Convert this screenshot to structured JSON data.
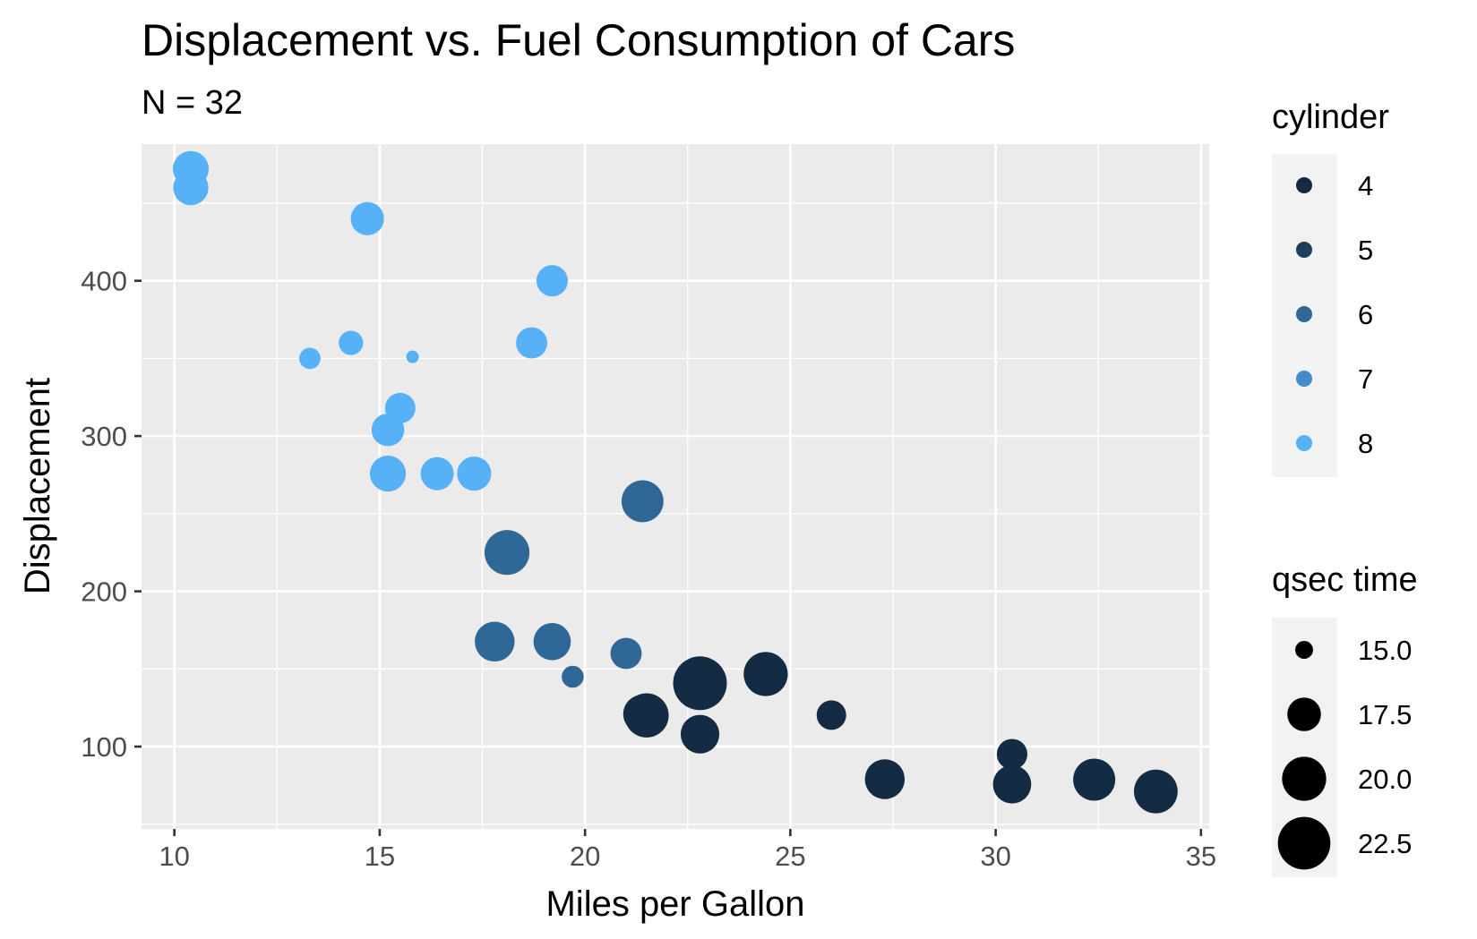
{
  "chart_data": {
    "type": "scatter",
    "title": "Displacement vs. Fuel Consumption of Cars",
    "subtitle": "N = 32",
    "xlabel": "Miles per Gallon",
    "ylabel": "Displacement",
    "xlim": [
      9.2,
      35.2
    ],
    "ylim": [
      47,
      488
    ],
    "xticks": [
      10,
      15,
      20,
      25,
      30,
      35
    ],
    "yticks": [
      100,
      200,
      300,
      400
    ],
    "grid": true,
    "panel_background": "#ebebeb",
    "legend_position": "right",
    "color_legend": {
      "title": "cylinder",
      "levels": [
        {
          "label": "4",
          "color": "#132b43"
        },
        {
          "label": "5",
          "color": "#1d3f5e"
        },
        {
          "label": "6",
          "color": "#2f6897"
        },
        {
          "label": "7",
          "color": "#428dcc"
        },
        {
          "label": "8",
          "color": "#56b1f7"
        }
      ]
    },
    "size_legend": {
      "title": "qsec time",
      "levels": [
        {
          "label": "15.0",
          "value": 15.0
        },
        {
          "label": "17.5",
          "value": 17.5
        },
        {
          "label": "20.0",
          "value": 20.0
        },
        {
          "label": "22.5",
          "value": 22.5
        }
      ]
    },
    "points": [
      {
        "mpg": 21.0,
        "disp": 160,
        "cyl": 6,
        "qsec": 16.46
      },
      {
        "mpg": 21.0,
        "disp": 160,
        "cyl": 6,
        "qsec": 17.02
      },
      {
        "mpg": 22.8,
        "disp": 108,
        "cyl": 4,
        "qsec": 18.61
      },
      {
        "mpg": 21.4,
        "disp": 258,
        "cyl": 6,
        "qsec": 19.44
      },
      {
        "mpg": 18.7,
        "disp": 360,
        "cyl": 8,
        "qsec": 17.02
      },
      {
        "mpg": 18.1,
        "disp": 225,
        "cyl": 6,
        "qsec": 20.22
      },
      {
        "mpg": 14.3,
        "disp": 360,
        "cyl": 8,
        "qsec": 15.84
      },
      {
        "mpg": 24.4,
        "disp": 146.7,
        "cyl": 4,
        "qsec": 20.0
      },
      {
        "mpg": 22.8,
        "disp": 140.8,
        "cyl": 4,
        "qsec": 22.9
      },
      {
        "mpg": 19.2,
        "disp": 167.6,
        "cyl": 6,
        "qsec": 18.3
      },
      {
        "mpg": 17.8,
        "disp": 167.6,
        "cyl": 6,
        "qsec": 18.9
      },
      {
        "mpg": 16.4,
        "disp": 275.8,
        "cyl": 8,
        "qsec": 17.4
      },
      {
        "mpg": 17.3,
        "disp": 275.8,
        "cyl": 8,
        "qsec": 17.6
      },
      {
        "mpg": 15.2,
        "disp": 275.8,
        "cyl": 8,
        "qsec": 18.0
      },
      {
        "mpg": 10.4,
        "disp": 472,
        "cyl": 8,
        "qsec": 17.98
      },
      {
        "mpg": 10.4,
        "disp": 460,
        "cyl": 8,
        "qsec": 17.82
      },
      {
        "mpg": 14.7,
        "disp": 440,
        "cyl": 8,
        "qsec": 17.42
      },
      {
        "mpg": 32.4,
        "disp": 78.7,
        "cyl": 4,
        "qsec": 19.47
      },
      {
        "mpg": 30.4,
        "disp": 75.7,
        "cyl": 4,
        "qsec": 18.52
      },
      {
        "mpg": 33.9,
        "disp": 71.1,
        "cyl": 4,
        "qsec": 19.9
      },
      {
        "mpg": 21.5,
        "disp": 120.1,
        "cyl": 4,
        "qsec": 20.01
      },
      {
        "mpg": 15.5,
        "disp": 318,
        "cyl": 8,
        "qsec": 16.87
      },
      {
        "mpg": 15.2,
        "disp": 304,
        "cyl": 8,
        "qsec": 17.3
      },
      {
        "mpg": 13.3,
        "disp": 350,
        "cyl": 8,
        "qsec": 15.41
      },
      {
        "mpg": 19.2,
        "disp": 400,
        "cyl": 8,
        "qsec": 17.05
      },
      {
        "mpg": 27.3,
        "disp": 79,
        "cyl": 4,
        "qsec": 18.9
      },
      {
        "mpg": 26.0,
        "disp": 120.3,
        "cyl": 4,
        "qsec": 16.7
      },
      {
        "mpg": 30.4,
        "disp": 95.1,
        "cyl": 4,
        "qsec": 16.9
      },
      {
        "mpg": 15.8,
        "disp": 351,
        "cyl": 8,
        "qsec": 14.5
      },
      {
        "mpg": 19.7,
        "disp": 145,
        "cyl": 6,
        "qsec": 15.5
      },
      {
        "mpg": 15.0,
        "disp": 301,
        "cyl": 8,
        "qsec": 14.6
      },
      {
        "mpg": 21.4,
        "disp": 121,
        "cyl": 4,
        "qsec": 18.6
      }
    ]
  }
}
